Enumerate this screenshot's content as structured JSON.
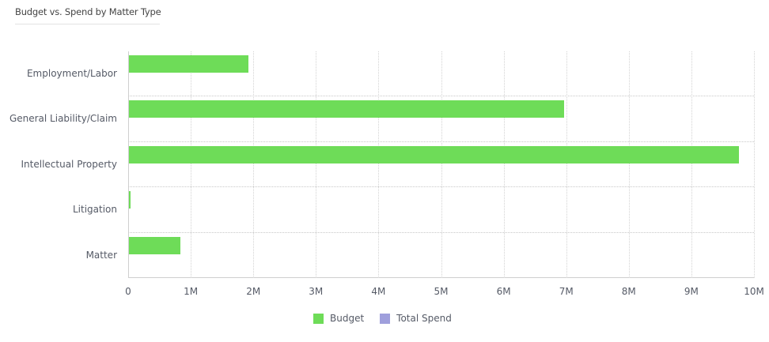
{
  "header": {
    "title": "Budget vs. Spend by Matter Type"
  },
  "colors": {
    "budget": "#6edc58",
    "total_spend": "#9f9fdc"
  },
  "axis": {
    "x_ticks": [
      "0",
      "1M",
      "2M",
      "3M",
      "4M",
      "5M",
      "6M",
      "7M",
      "8M",
      "9M",
      "10M"
    ],
    "y_categories": [
      "Employment/Labor",
      "General Liability/Claim",
      "Intellectual Property",
      "Litigation",
      "Matter"
    ]
  },
  "legend": {
    "items": [
      {
        "label": "Budget"
      },
      {
        "label": "Total Spend"
      }
    ]
  },
  "chart_data": {
    "type": "bar",
    "orientation": "horizontal",
    "title": "Budget vs. Spend by Matter Type",
    "categories": [
      "Employment/Labor",
      "General Liability/Claim",
      "Intellectual Property",
      "Litigation",
      "Matter"
    ],
    "series": [
      {
        "name": "Budget",
        "color": "#6edc58",
        "values": [
          1910000,
          6950000,
          9750000,
          20000,
          820000
        ]
      },
      {
        "name": "Total Spend",
        "color": "#9f9fdc",
        "values": [
          0,
          0,
          0,
          0,
          0
        ]
      }
    ],
    "xlabel": "",
    "ylabel": "",
    "xlim": [
      0,
      10000000
    ],
    "x_tick_labels": [
      "0",
      "1M",
      "2M",
      "3M",
      "4M",
      "5M",
      "6M",
      "7M",
      "8M",
      "9M",
      "10M"
    ],
    "grid": true,
    "legend_position": "bottom"
  }
}
